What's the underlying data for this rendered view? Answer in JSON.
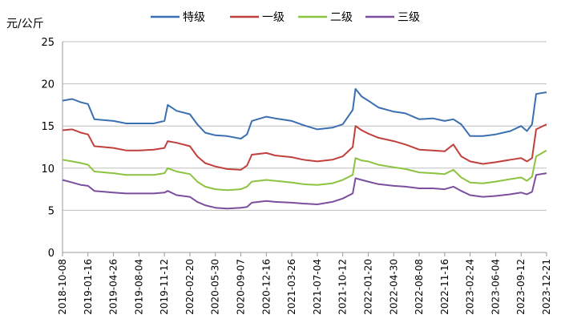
{
  "chart_data": {
    "type": "line",
    "ylabel": "元/公斤",
    "ylim": [
      0,
      25
    ],
    "yticks": [
      "0",
      "5",
      "10",
      "15",
      "20",
      "25"
    ],
    "x_tick_labels": [
      "2018-10-08",
      "2019-01-16",
      "2019-04-26",
      "2019-08-04",
      "2019-11-12",
      "2020-02-20",
      "2020-05-30",
      "2020-09-07",
      "2020-12-16",
      "2021-03-26",
      "2021-07-04",
      "2021-10-12",
      "2022-01-20",
      "2022-04-30",
      "2022-08-08",
      "2022-11-16",
      "2023-02-24",
      "2023-06-04",
      "2023-09-12",
      "2023-12-21"
    ],
    "grid": "horizontal",
    "legend_position": "top",
    "series": [
      {
        "name": "特级",
        "color": "#3a6fb0",
        "x": [
          "2018-10-08",
          "2018-11-15",
          "2018-12-20",
          "2019-01-16",
          "2019-02-10",
          "2019-04-26",
          "2019-06-15",
          "2019-08-04",
          "2019-10-01",
          "2019-11-12",
          "2019-11-25",
          "2019-12-30",
          "2020-02-20",
          "2020-03-20",
          "2020-04-20",
          "2020-05-30",
          "2020-07-15",
          "2020-09-07",
          "2020-10-01",
          "2020-10-20",
          "2020-12-16",
          "2021-01-20",
          "2021-03-26",
          "2021-05-10",
          "2021-07-04",
          "2021-09-01",
          "2021-10-12",
          "2021-11-20",
          "2021-12-01",
          "2021-12-25",
          "2022-01-20",
          "2022-03-01",
          "2022-04-30",
          "2022-06-15",
          "2022-08-08",
          "2022-10-01",
          "2022-11-16",
          "2022-12-20",
          "2023-01-20",
          "2023-02-24",
          "2023-04-15",
          "2023-06-04",
          "2023-08-01",
          "2023-09-12",
          "2023-10-05",
          "2023-10-25",
          "2023-11-10",
          "2023-12-21"
        ],
        "values": [
          18.0,
          18.2,
          17.8,
          17.6,
          15.8,
          15.6,
          15.3,
          15.3,
          15.3,
          15.6,
          17.5,
          16.8,
          16.4,
          15.2,
          14.2,
          13.9,
          13.8,
          13.5,
          14.0,
          15.6,
          16.1,
          15.9,
          15.6,
          15.1,
          14.6,
          14.8,
          15.2,
          16.9,
          19.4,
          18.5,
          18.0,
          17.2,
          16.7,
          16.5,
          15.8,
          15.9,
          15.6,
          15.8,
          15.2,
          13.8,
          13.8,
          14.0,
          14.4,
          15.0,
          14.4,
          15.2,
          18.8,
          19.0
        ]
      },
      {
        "name": "一级",
        "color": "#c0403d",
        "x": [
          "2018-10-08",
          "2018-11-15",
          "2018-12-20",
          "2019-01-16",
          "2019-02-10",
          "2019-04-26",
          "2019-06-15",
          "2019-08-04",
          "2019-10-01",
          "2019-11-12",
          "2019-11-25",
          "2019-12-30",
          "2020-02-20",
          "2020-03-20",
          "2020-04-20",
          "2020-05-30",
          "2020-07-15",
          "2020-09-07",
          "2020-10-01",
          "2020-10-20",
          "2020-12-16",
          "2021-01-20",
          "2021-03-26",
          "2021-05-10",
          "2021-07-04",
          "2021-09-01",
          "2021-10-12",
          "2021-11-20",
          "2021-12-01",
          "2021-12-25",
          "2022-01-20",
          "2022-03-01",
          "2022-04-30",
          "2022-06-15",
          "2022-08-08",
          "2022-10-01",
          "2022-11-16",
          "2022-12-20",
          "2023-01-20",
          "2023-02-24",
          "2023-04-15",
          "2023-06-04",
          "2023-08-01",
          "2023-09-12",
          "2023-10-05",
          "2023-10-25",
          "2023-11-10",
          "2023-12-21"
        ],
        "values": [
          14.5,
          14.6,
          14.2,
          14.0,
          12.6,
          12.4,
          12.1,
          12.1,
          12.2,
          12.4,
          13.2,
          13.0,
          12.6,
          11.4,
          10.6,
          10.2,
          9.9,
          9.8,
          10.3,
          11.6,
          11.8,
          11.5,
          11.3,
          11.0,
          10.8,
          11.0,
          11.4,
          12.5,
          15.0,
          14.5,
          14.1,
          13.6,
          13.2,
          12.8,
          12.2,
          12.1,
          12.0,
          12.8,
          11.4,
          10.8,
          10.5,
          10.7,
          11.0,
          11.2,
          10.8,
          11.2,
          14.6,
          15.2
        ]
      },
      {
        "name": "二级",
        "color": "#8cc340",
        "x": [
          "2018-10-08",
          "2018-11-15",
          "2018-12-20",
          "2019-01-16",
          "2019-02-10",
          "2019-04-26",
          "2019-06-15",
          "2019-08-04",
          "2019-10-01",
          "2019-11-12",
          "2019-11-25",
          "2019-12-30",
          "2020-02-20",
          "2020-03-20",
          "2020-04-20",
          "2020-05-30",
          "2020-07-15",
          "2020-09-07",
          "2020-10-01",
          "2020-10-20",
          "2020-12-16",
          "2021-01-20",
          "2021-03-26",
          "2021-05-10",
          "2021-07-04",
          "2021-09-01",
          "2021-10-12",
          "2021-11-20",
          "2021-12-01",
          "2021-12-25",
          "2022-01-20",
          "2022-03-01",
          "2022-04-30",
          "2022-06-15",
          "2022-08-08",
          "2022-10-01",
          "2022-11-16",
          "2022-12-20",
          "2023-01-20",
          "2023-02-24",
          "2023-04-15",
          "2023-06-04",
          "2023-08-01",
          "2023-09-12",
          "2023-10-05",
          "2023-10-25",
          "2023-11-10",
          "2023-12-21"
        ],
        "values": [
          11.0,
          10.8,
          10.6,
          10.4,
          9.6,
          9.4,
          9.2,
          9.2,
          9.2,
          9.4,
          10.0,
          9.6,
          9.3,
          8.4,
          7.8,
          7.5,
          7.4,
          7.5,
          7.8,
          8.4,
          8.6,
          8.5,
          8.3,
          8.1,
          8.0,
          8.2,
          8.6,
          9.2,
          11.2,
          10.9,
          10.8,
          10.4,
          10.1,
          9.9,
          9.5,
          9.4,
          9.3,
          9.8,
          8.9,
          8.3,
          8.2,
          8.4,
          8.7,
          8.9,
          8.5,
          9.0,
          11.4,
          12.1
        ]
      },
      {
        "name": "三级",
        "color": "#7b4f9e",
        "x": [
          "2018-10-08",
          "2018-11-15",
          "2018-12-20",
          "2019-01-16",
          "2019-02-10",
          "2019-04-26",
          "2019-06-15",
          "2019-08-04",
          "2019-10-01",
          "2019-11-12",
          "2019-11-25",
          "2019-12-30",
          "2020-02-20",
          "2020-03-20",
          "2020-04-20",
          "2020-05-30",
          "2020-07-15",
          "2020-09-07",
          "2020-10-01",
          "2020-10-20",
          "2020-12-16",
          "2021-01-20",
          "2021-03-26",
          "2021-05-10",
          "2021-07-04",
          "2021-09-01",
          "2021-10-12",
          "2021-11-20",
          "2021-12-01",
          "2021-12-25",
          "2022-01-20",
          "2022-03-01",
          "2022-04-30",
          "2022-06-15",
          "2022-08-08",
          "2022-10-01",
          "2022-11-16",
          "2022-12-20",
          "2023-01-20",
          "2023-02-24",
          "2023-04-15",
          "2023-06-04",
          "2023-08-01",
          "2023-09-12",
          "2023-10-05",
          "2023-10-25",
          "2023-11-10",
          "2023-12-21"
        ],
        "values": [
          8.6,
          8.3,
          8.0,
          7.9,
          7.3,
          7.1,
          7.0,
          7.0,
          7.0,
          7.1,
          7.3,
          6.8,
          6.6,
          6.0,
          5.6,
          5.3,
          5.2,
          5.3,
          5.4,
          5.9,
          6.1,
          6.0,
          5.9,
          5.8,
          5.7,
          6.0,
          6.4,
          7.0,
          8.8,
          8.6,
          8.4,
          8.1,
          7.9,
          7.8,
          7.6,
          7.6,
          7.5,
          7.8,
          7.3,
          6.8,
          6.6,
          6.7,
          6.9,
          7.1,
          6.9,
          7.2,
          9.2,
          9.4
        ]
      }
    ]
  }
}
